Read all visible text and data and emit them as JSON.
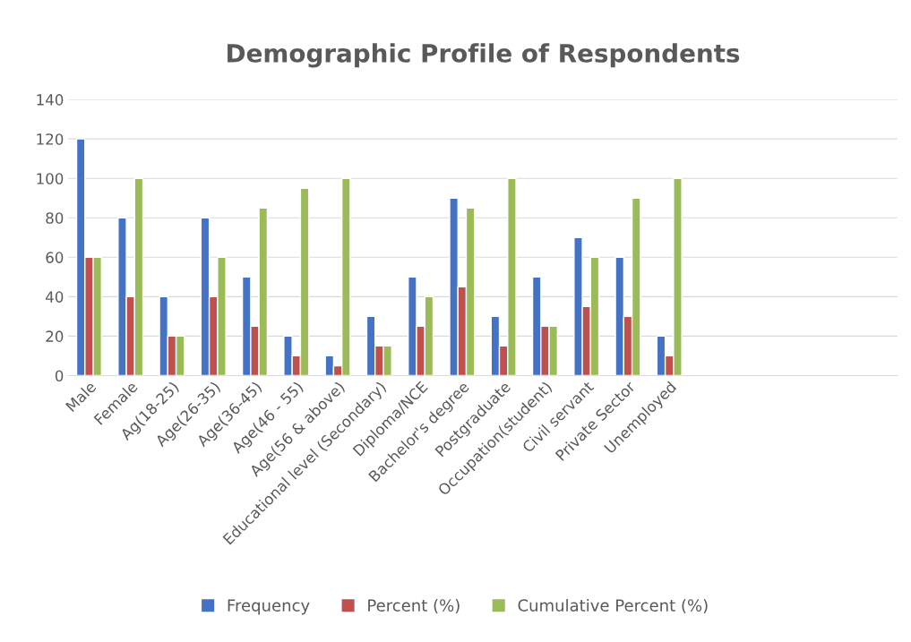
{
  "chart_data": {
    "type": "bar",
    "title": "Demographic Profile of Respondents",
    "categories": [
      "Male",
      "Female",
      "Ag(18-25)",
      "Age(26-35)",
      "Age(36-45)",
      "Age(46 - 55)",
      "Age(56 & above)",
      "Educational level (Secondary)",
      "Diploma/NCE",
      "Bachelor's degree",
      "Postgraduate",
      "Occupation(student)",
      "Civil servant",
      "Private Sector",
      "Unemployed",
      null,
      null,
      null,
      null,
      null
    ],
    "series": [
      {
        "name": "Frequency",
        "color": "#4472c4",
        "values": [
          120,
          80,
          40,
          80,
          50,
          20,
          10,
          30,
          50,
          90,
          30,
          50,
          70,
          60,
          20,
          null,
          null,
          null,
          null,
          null
        ]
      },
      {
        "name": "Percent (%)",
        "color": "#c0504d",
        "values": [
          60,
          40,
          20,
          40,
          25,
          10,
          5,
          15,
          25,
          45,
          15,
          25,
          35,
          30,
          10,
          null,
          null,
          null,
          null,
          null
        ]
      },
      {
        "name": "Cumulative Percent (%)",
        "color": "#9bbb59",
        "values": [
          60,
          100,
          20,
          60,
          85,
          95,
          100,
          15,
          40,
          85,
          100,
          25,
          60,
          90,
          100,
          null,
          null,
          null,
          null,
          null
        ]
      }
    ],
    "ylim": [
      0,
      140
    ],
    "yticks": [
      0,
      20,
      40,
      60,
      80,
      100,
      120,
      140
    ],
    "grid": "y",
    "legend": "bottom"
  }
}
